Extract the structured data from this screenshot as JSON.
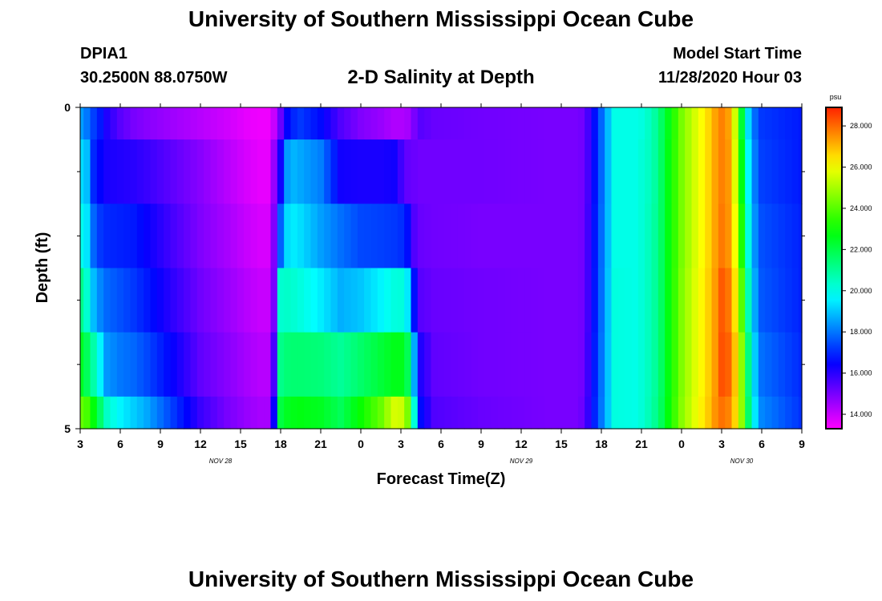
{
  "header": {
    "title": "University of Southern Mississippi Ocean Cube",
    "station_id": "DPIA1",
    "coords": "30.2500N 88.0750W",
    "plot_title": "2-D Salinity at Depth",
    "start_label": "Model Start Time",
    "start_value": "11/28/2020 Hour 03"
  },
  "footer": {
    "title": "University of Southern Mississippi Ocean Cube"
  },
  "chart_data": {
    "type": "heatmap",
    "title": "2-D Salinity at Depth",
    "xlabel": "Forecast Time(Z)",
    "ylabel": "Depth (ft)",
    "units": "psu",
    "xlim": [
      0,
      54
    ],
    "ylim": [
      0,
      5
    ],
    "x_ticks": [
      {
        "t": 0,
        "label": "3"
      },
      {
        "t": 3,
        "label": "6"
      },
      {
        "t": 6,
        "label": "9"
      },
      {
        "t": 9,
        "label": "12"
      },
      {
        "t": 12,
        "label": "15"
      },
      {
        "t": 15,
        "label": "18"
      },
      {
        "t": 18,
        "label": "21"
      },
      {
        "t": 21,
        "label": "0"
      },
      {
        "t": 24,
        "label": "3"
      },
      {
        "t": 27,
        "label": "6"
      },
      {
        "t": 30,
        "label": "9"
      },
      {
        "t": 33,
        "label": "12"
      },
      {
        "t": 36,
        "label": "15"
      },
      {
        "t": 39,
        "label": "18"
      },
      {
        "t": 42,
        "label": "21"
      },
      {
        "t": 45,
        "label": "0"
      },
      {
        "t": 48,
        "label": "3"
      },
      {
        "t": 51,
        "label": "6"
      },
      {
        "t": 54,
        "label": "9"
      }
    ],
    "date_labels": [
      {
        "t": 10.5,
        "label": "NOV  28"
      },
      {
        "t": 33,
        "label": "NOV  29"
      },
      {
        "t": 49.5,
        "label": "NOV  30"
      }
    ],
    "y_tick_labels": [
      {
        "d": 0,
        "label": "0"
      },
      {
        "d": 5,
        "label": "5"
      }
    ],
    "y_minor_ticks": [
      1,
      2,
      3,
      4
    ],
    "colorbar": {
      "range": [
        13.3,
        28.9
      ],
      "labels": [
        "28.000",
        "26.000",
        "24.000",
        "22.000",
        "20.000",
        "18.000",
        "16.000",
        "14.000"
      ],
      "label_values": [
        28,
        26,
        24,
        22,
        20,
        18,
        16,
        14
      ]
    },
    "time_hours": [
      0,
      0.5,
      1,
      1.5,
      2,
      2.5,
      3,
      3.5,
      4,
      4.5,
      5,
      5.5,
      6,
      6.5,
      7,
      7.5,
      8,
      8.5,
      9,
      9.5,
      10,
      10.5,
      11,
      11.5,
      12,
      12.5,
      13,
      13.5,
      14,
      14.5,
      15,
      15.5,
      16,
      16.5,
      17,
      17.5,
      18,
      18.5,
      19,
      19.5,
      20,
      20.5,
      21,
      21.5,
      22,
      22.5,
      23,
      23.5,
      24,
      24.5,
      25,
      25.5,
      26,
      26.5,
      27,
      27.5,
      28,
      28.5,
      29,
      29.5,
      30,
      30.5,
      31,
      31.5,
      32,
      32.5,
      33,
      33.5,
      34,
      34.5,
      35,
      35.5,
      36,
      36.5,
      37,
      37.5,
      38,
      38.5,
      39,
      39.5,
      40,
      40.5,
      41,
      41.5,
      42,
      42.5,
      43,
      43.5,
      44,
      44.5,
      45,
      45.5,
      46,
      46.5,
      47,
      47.5,
      48,
      48.5,
      49,
      49.5,
      50,
      50.5,
      51,
      51.5,
      52,
      52.5,
      53,
      53.5,
      54
    ],
    "key_times": [
      0,
      0.5,
      1.0,
      1.5,
      2.0,
      3.0,
      4.0,
      5.0,
      7.0,
      9.0,
      11.0,
      12.5,
      13.4,
      14.0,
      14.5,
      15.0,
      15.6,
      16.5,
      18.0,
      19.5,
      21.0,
      22.5,
      23.5,
      24.4,
      24.8,
      25.5,
      26.5,
      30.0,
      35.0,
      37.0,
      37.7,
      38.2,
      40.0,
      41.5,
      42.0,
      42.8,
      43.3,
      44.0,
      45.0,
      46.0,
      47.0,
      47.6,
      48.0,
      48.4,
      48.8,
      49.2,
      49.6,
      50.2,
      51.0,
      54.0
    ],
    "depth_levels": [
      0,
      1,
      2,
      3,
      4,
      5
    ],
    "rows": [
      {
        "depth": 0,
        "values": [
          18.5,
          18.0,
          17.3,
          16.8,
          16.1,
          15.4,
          15.0,
          14.8,
          14.5,
          14.2,
          13.9,
          13.6,
          13.5,
          13.5,
          14.0,
          15.2,
          16.8,
          17.2,
          16.6,
          15.5,
          14.9,
          14.6,
          14.3,
          14.3,
          14.8,
          15.4,
          15.2,
          15.1,
          15.0,
          15.0,
          15.1,
          16.0,
          20.0,
          20.0,
          20.1,
          20.6,
          21.3,
          22.6,
          24.4,
          25.6,
          26.6,
          27.4,
          27.7,
          27.6,
          26.5,
          24.6,
          21.5,
          18.2,
          17.2,
          16.8
        ]
      },
      {
        "depth": 1,
        "values": [
          19.3,
          18.9,
          17.0,
          16.5,
          16.2,
          16.1,
          16.0,
          15.8,
          15.3,
          14.8,
          14.2,
          13.8,
          13.6,
          13.6,
          14.6,
          16.3,
          18.9,
          18.6,
          18.1,
          16.3,
          16.2,
          16.2,
          16.3,
          15.3,
          15.2,
          15.1,
          15.1,
          15.1,
          15.0,
          15.0,
          15.1,
          16.0,
          20.0,
          20.0,
          20.2,
          20.6,
          21.3,
          22.7,
          24.4,
          25.6,
          26.6,
          27.4,
          27.7,
          27.7,
          26.6,
          24.9,
          22.0,
          18.5,
          17.3,
          16.8
        ]
      },
      {
        "depth": 2,
        "values": [
          19.9,
          19.4,
          17.8,
          17.2,
          17.0,
          16.9,
          16.8,
          16.4,
          15.6,
          14.9,
          14.4,
          14.0,
          13.8,
          13.8,
          14.9,
          17.7,
          19.6,
          19.3,
          18.5,
          17.9,
          17.4,
          17.3,
          17.2,
          17.0,
          15.6,
          15.2,
          15.1,
          15.0,
          15.0,
          15.0,
          15.1,
          16.1,
          20.0,
          20.0,
          20.2,
          20.7,
          21.3,
          22.7,
          24.4,
          25.6,
          26.6,
          27.4,
          27.8,
          27.7,
          26.8,
          25.3,
          22.6,
          18.8,
          17.5,
          16.9
        ]
      },
      {
        "depth": 3,
        "values": [
          21.2,
          20.3,
          18.9,
          18.2,
          17.8,
          17.5,
          17.2,
          16.8,
          15.9,
          15.1,
          14.6,
          14.2,
          14.0,
          14.0,
          15.0,
          20.3,
          20.4,
          20.1,
          19.5,
          18.7,
          19.0,
          19.6,
          20.1,
          20.2,
          17.2,
          15.4,
          15.2,
          15.1,
          15.0,
          15.0,
          15.1,
          16.1,
          20.1,
          20.0,
          20.2,
          20.7,
          21.3,
          22.7,
          24.5,
          25.7,
          26.7,
          27.5,
          28.2,
          28.1,
          27.1,
          25.8,
          23.4,
          19.2,
          17.6,
          16.9
        ]
      },
      {
        "depth": 4,
        "values": [
          22.5,
          21.8,
          20.8,
          19.6,
          18.4,
          18.0,
          17.8,
          17.4,
          16.4,
          15.3,
          14.8,
          14.4,
          14.2,
          14.2,
          15.6,
          21.2,
          21.5,
          21.5,
          21.4,
          21.0,
          21.6,
          22.2,
          22.6,
          22.6,
          19.7,
          16.1,
          15.3,
          15.1,
          15.0,
          15.0,
          15.1,
          16.2,
          20.1,
          20.0,
          20.2,
          20.7,
          21.3,
          22.7,
          24.5,
          25.7,
          26.7,
          27.5,
          28.3,
          28.3,
          27.5,
          26.2,
          24.2,
          19.8,
          17.9,
          17.0
        ]
      },
      {
        "depth": 5,
        "values": [
          24.2,
          23.8,
          22.8,
          21.6,
          20.4,
          19.6,
          19.1,
          18.6,
          17.2,
          15.8,
          15.0,
          14.6,
          14.4,
          14.4,
          16.4,
          22.1,
          22.6,
          22.7,
          22.5,
          21.8,
          23.0,
          24.2,
          25.6,
          25.4,
          21.6,
          16.6,
          15.5,
          15.2,
          15.0,
          15.0,
          15.2,
          16.3,
          20.1,
          20.0,
          20.2,
          20.8,
          21.4,
          22.8,
          24.6,
          25.8,
          26.8,
          27.6,
          27.9,
          27.8,
          27.3,
          26.0,
          24.3,
          20.2,
          18.2,
          17.1
        ]
      }
    ]
  }
}
